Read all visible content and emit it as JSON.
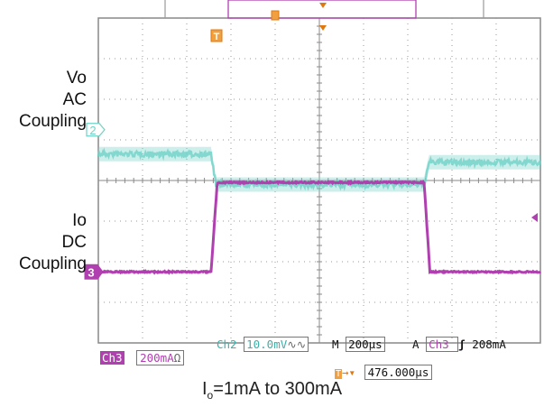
{
  "chart_data": {
    "type": "line",
    "grid": true,
    "x": {
      "divisions": 10,
      "per_div_us": 200
    },
    "y": {
      "divisions": 8
    },
    "series": [
      {
        "channel": "Ch2",
        "color": "#6fd2c8",
        "label_lines": [
          "Vo",
          "AC",
          "Coupling"
        ],
        "marker": "2",
        "time_div": [
          0,
          2.55,
          2.66,
          7.37,
          7.48,
          10
        ],
        "level_div": [
          3.35,
          3.35,
          4.1,
          4.1,
          3.55,
          3.55
        ]
      },
      {
        "channel": "Ch3",
        "color": "#b040b0",
        "label_lines": [
          "Io",
          "DC",
          "Coupling"
        ],
        "marker": "3",
        "time_div": [
          0,
          2.55,
          2.69,
          7.37,
          7.5,
          10
        ],
        "level_div": [
          6.25,
          6.25,
          4.05,
          4.05,
          6.25,
          6.25
        ]
      }
    ],
    "trigger_marker": "T"
  },
  "readouts": {
    "ch2_name": "Ch2",
    "ch2_scale": "10.0mV",
    "ch2_coupling_icon": "ac-coupling-icon",
    "timebase_label": "M",
    "timebase": "200µs",
    "trigger_label": "A",
    "trigger_source": "Ch3",
    "trigger_slope_icon": "rising-edge-icon",
    "trigger_level": "208mA",
    "ch3_name": "Ch3",
    "ch3_scale": "200mA",
    "ch3_impedance_icon": "ohm-icon",
    "trigger_position": "476.000µs"
  },
  "caption": {
    "prefix": "I",
    "sub": "o",
    "rest": "=1mA to 300mA"
  }
}
